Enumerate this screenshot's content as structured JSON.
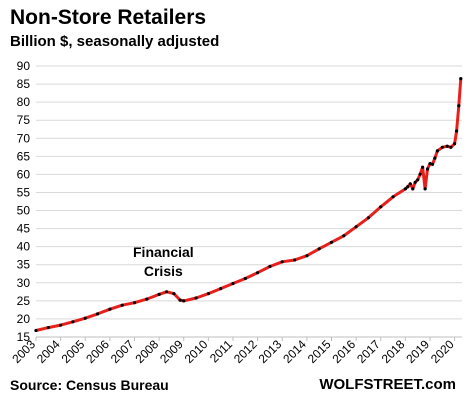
{
  "chart_data": {
    "type": "line",
    "title": "Non-Store Retailers",
    "subtitle": "Billion $, seasonally adjusted",
    "source": "Source: Census Bureau",
    "brand": "WOLFSTREET.com",
    "annotation": {
      "text_line1": "Financial",
      "text_line2": "Crisis",
      "x": 2008.3
    },
    "x_ticks": [
      "2003",
      "2004",
      "2005",
      "2006",
      "2007",
      "2008",
      "2009",
      "2010",
      "2011",
      "2012",
      "2013",
      "2014",
      "2015",
      "2016",
      "2017",
      "2018",
      "2019",
      "2020"
    ],
    "y_ticks": [
      15,
      20,
      25,
      30,
      35,
      40,
      45,
      50,
      55,
      60,
      65,
      70,
      75,
      80,
      85,
      90
    ],
    "xlim": [
      2003,
      2020.3
    ],
    "ylim": [
      15,
      90
    ],
    "grid": true,
    "line_color": "#e8201c",
    "marker_color": "#000000",
    "series": [
      {
        "x": [
          2003.0,
          2003.5,
          2004.0,
          2004.5,
          2005.0,
          2005.5,
          2006.0,
          2006.5,
          2007.0,
          2007.5,
          2008.0,
          2008.3,
          2008.6,
          2008.85,
          2009.0,
          2009.5,
          2010.0,
          2010.5,
          2011.0,
          2011.5,
          2012.0,
          2012.5,
          2013.0,
          2013.5,
          2014.0,
          2014.5,
          2015.0,
          2015.5,
          2016.0,
          2016.5,
          2017.0,
          2017.5,
          2018.0,
          2018.1,
          2018.2,
          2018.3,
          2018.4,
          2018.5,
          2018.6,
          2018.7,
          2018.8,
          2018.9,
          2019.0,
          2019.1,
          2019.2,
          2019.3,
          2019.5,
          2019.7,
          2019.85,
          2020.0,
          2020.08,
          2020.17,
          2020.25
        ],
        "y": [
          16.8,
          17.6,
          18.3,
          19.2,
          20.2,
          21.4,
          22.7,
          23.8,
          24.5,
          25.5,
          26.8,
          27.5,
          27.0,
          25.2,
          25.0,
          25.8,
          27.0,
          28.4,
          29.8,
          31.2,
          32.8,
          34.5,
          35.8,
          36.3,
          37.5,
          39.4,
          41.2,
          43.0,
          45.5,
          48.0,
          51.0,
          53.8,
          56.0,
          56.6,
          57.4,
          56.0,
          57.8,
          58.5,
          60.0,
          62.0,
          56.0,
          61.5,
          63.0,
          62.8,
          64.5,
          66.5,
          67.5,
          67.8,
          67.5,
          68.5,
          72.0,
          79.0,
          86.5
        ]
      }
    ]
  }
}
